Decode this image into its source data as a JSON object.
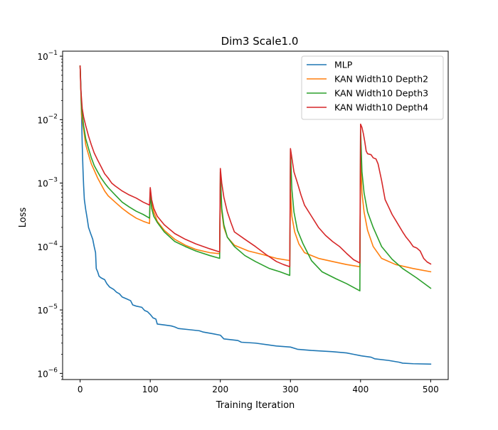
{
  "chart_data": {
    "type": "line",
    "title": "Dim3 Scale1.0",
    "xlabel": "Training Iteration",
    "ylabel": "Loss",
    "xlim": [
      -25,
      525
    ],
    "ylim": [
      8e-07,
      0.12
    ],
    "yscale": "log",
    "xticks": [
      0,
      100,
      200,
      300,
      400,
      500
    ],
    "yticks": [
      {
        "value": 1e-06,
        "base": "10",
        "exp": "−6"
      },
      {
        "value": 1e-05,
        "base": "10",
        "exp": "−5"
      },
      {
        "value": 0.0001,
        "base": "10",
        "exp": "−4"
      },
      {
        "value": 0.001,
        "base": "10",
        "exp": "−3"
      },
      {
        "value": 0.01,
        "base": "10",
        "exp": "−2"
      },
      {
        "value": 0.1,
        "base": "10",
        "exp": "−1"
      }
    ],
    "legend_position": "top-right",
    "series": [
      {
        "name": "MLP",
        "color": "#1f77b4",
        "points": [
          [
            0,
            0.07
          ],
          [
            1,
            0.035
          ],
          [
            2,
            0.012
          ],
          [
            3,
            0.004
          ],
          [
            4,
            0.0017
          ],
          [
            5,
            0.0009
          ],
          [
            6,
            0.00055
          ],
          [
            8,
            0.00038
          ],
          [
            10,
            0.00028
          ],
          [
            12,
            0.0002
          ],
          [
            15,
            0.00016
          ],
          [
            18,
            0.00013
          ],
          [
            20,
            0.0001
          ],
          [
            22,
            8e-05
          ],
          [
            23,
            4.5e-05
          ],
          [
            25,
            4e-05
          ],
          [
            27,
            3.4e-05
          ],
          [
            30,
            3.2e-05
          ],
          [
            35,
            3e-05
          ],
          [
            38,
            2.6e-05
          ],
          [
            42,
            2.3e-05
          ],
          [
            48,
            2.1e-05
          ],
          [
            52,
            1.9e-05
          ],
          [
            56,
            1.8e-05
          ],
          [
            60,
            1.6e-05
          ],
          [
            66,
            1.5e-05
          ],
          [
            72,
            1.4e-05
          ],
          [
            75,
            1.2e-05
          ],
          [
            80,
            1.15e-05
          ],
          [
            88,
            1.1e-05
          ],
          [
            92,
            9.8e-06
          ],
          [
            96,
            9.4e-06
          ],
          [
            100,
            8.5e-06
          ],
          [
            104,
            7.5e-06
          ],
          [
            108,
            7.2e-06
          ],
          [
            110,
            6e-06
          ],
          [
            120,
            5.8e-06
          ],
          [
            130,
            5.6e-06
          ],
          [
            135,
            5.4e-06
          ],
          [
            140,
            5.1e-06
          ],
          [
            155,
            4.9e-06
          ],
          [
            170,
            4.7e-06
          ],
          [
            175,
            4.5e-06
          ],
          [
            190,
            4.2e-06
          ],
          [
            200,
            4e-06
          ],
          [
            205,
            3.5e-06
          ],
          [
            225,
            3.3e-06
          ],
          [
            230,
            3.1e-06
          ],
          [
            250,
            3e-06
          ],
          [
            270,
            2.8e-06
          ],
          [
            280,
            2.7e-06
          ],
          [
            300,
            2.6e-06
          ],
          [
            310,
            2.4e-06
          ],
          [
            330,
            2.3e-06
          ],
          [
            360,
            2.2e-06
          ],
          [
            380,
            2.1e-06
          ],
          [
            390,
            2e-06
          ],
          [
            400,
            1.9e-06
          ],
          [
            415,
            1.8e-06
          ],
          [
            420,
            1.7e-06
          ],
          [
            440,
            1.6e-06
          ],
          [
            455,
            1.5e-06
          ],
          [
            460,
            1.45e-06
          ],
          [
            475,
            1.42e-06
          ],
          [
            500,
            1.4e-06
          ]
        ]
      },
      {
        "name": "KAN Width10 Depth2",
        "color": "#ff7f0e",
        "points": [
          [
            0,
            0.07
          ],
          [
            2,
            0.012
          ],
          [
            5,
            0.007
          ],
          [
            8,
            0.004
          ],
          [
            12,
            0.0028
          ],
          [
            16,
            0.002
          ],
          [
            20,
            0.0016
          ],
          [
            25,
            0.0012
          ],
          [
            30,
            0.00095
          ],
          [
            35,
            0.00075
          ],
          [
            40,
            0.00063
          ],
          [
            50,
            0.0005
          ],
          [
            60,
            0.0004
          ],
          [
            70,
            0.00033
          ],
          [
            80,
            0.00028
          ],
          [
            90,
            0.00025
          ],
          [
            99,
            0.00023
          ],
          [
            100,
            0.0008
          ],
          [
            102,
            0.0005
          ],
          [
            105,
            0.00035
          ],
          [
            110,
            0.00025
          ],
          [
            120,
            0.00018
          ],
          [
            135,
            0.00013
          ],
          [
            150,
            0.000105
          ],
          [
            165,
            9e-05
          ],
          [
            185,
            8e-05
          ],
          [
            199,
            7.7e-05
          ],
          [
            200,
            0.001
          ],
          [
            202,
            0.00035
          ],
          [
            205,
            0.0002
          ],
          [
            210,
            0.00014
          ],
          [
            220,
            0.000105
          ],
          [
            240,
            8.5e-05
          ],
          [
            260,
            7.5e-05
          ],
          [
            280,
            6.5e-05
          ],
          [
            299,
            6e-05
          ],
          [
            300,
            0.0008
          ],
          [
            302,
            0.0003
          ],
          [
            306,
            0.00017
          ],
          [
            312,
            0.00011
          ],
          [
            320,
            8e-05
          ],
          [
            340,
            6.5e-05
          ],
          [
            360,
            5.8e-05
          ],
          [
            380,
            5.2e-05
          ],
          [
            399,
            4.8e-05
          ],
          [
            400,
            0.0028
          ],
          [
            402,
            0.0007
          ],
          [
            405,
            0.00035
          ],
          [
            410,
            0.00018
          ],
          [
            418,
            0.0001
          ],
          [
            430,
            6.5e-05
          ],
          [
            450,
            5.2e-05
          ],
          [
            475,
            4.5e-05
          ],
          [
            500,
            4e-05
          ]
        ]
      },
      {
        "name": "KAN Width10 Depth3",
        "color": "#2ca02c",
        "points": [
          [
            0,
            0.07
          ],
          [
            2,
            0.015
          ],
          [
            5,
            0.008
          ],
          [
            8,
            0.005
          ],
          [
            12,
            0.0035
          ],
          [
            16,
            0.0025
          ],
          [
            20,
            0.0019
          ],
          [
            25,
            0.0015
          ],
          [
            30,
            0.0012
          ],
          [
            35,
            0.001
          ],
          [
            40,
            0.00085
          ],
          [
            50,
            0.00065
          ],
          [
            60,
            0.0005
          ],
          [
            70,
            0.00042
          ],
          [
            80,
            0.00036
          ],
          [
            90,
            0.00032
          ],
          [
            99,
            0.00028
          ],
          [
            100,
            0.0007
          ],
          [
            102,
            0.0004
          ],
          [
            105,
            0.0003
          ],
          [
            110,
            0.00024
          ],
          [
            120,
            0.00017
          ],
          [
            135,
            0.00012
          ],
          [
            150,
            0.0001
          ],
          [
            165,
            8.5e-05
          ],
          [
            185,
            7.2e-05
          ],
          [
            199,
            6.5e-05
          ],
          [
            200,
            0.0015
          ],
          [
            202,
            0.0004
          ],
          [
            205,
            0.00022
          ],
          [
            210,
            0.00014
          ],
          [
            220,
            0.0001
          ],
          [
            235,
            7.2e-05
          ],
          [
            250,
            5.8e-05
          ],
          [
            270,
            4.5e-05
          ],
          [
            285,
            4e-05
          ],
          [
            299,
            3.5e-05
          ],
          [
            300,
            0.0033
          ],
          [
            302,
            0.0008
          ],
          [
            305,
            0.00035
          ],
          [
            310,
            0.00018
          ],
          [
            318,
            0.00011
          ],
          [
            330,
            6e-05
          ],
          [
            345,
            4e-05
          ],
          [
            365,
            3.1e-05
          ],
          [
            380,
            2.6e-05
          ],
          [
            399,
            2e-05
          ],
          [
            400,
            0.007
          ],
          [
            402,
            0.0015
          ],
          [
            405,
            0.0007
          ],
          [
            410,
            0.00035
          ],
          [
            418,
            0.0002
          ],
          [
            430,
            0.0001
          ],
          [
            445,
            6.3e-05
          ],
          [
            460,
            4.5e-05
          ],
          [
            480,
            3.2e-05
          ],
          [
            500,
            2.2e-05
          ]
        ]
      },
      {
        "name": "KAN Width10 Depth4",
        "color": "#d62728",
        "points": [
          [
            0,
            0.07
          ],
          [
            1,
            0.03
          ],
          [
            3,
            0.015
          ],
          [
            5,
            0.011
          ],
          [
            8,
            0.008
          ],
          [
            12,
            0.0055
          ],
          [
            16,
            0.004
          ],
          [
            20,
            0.003
          ],
          [
            25,
            0.0023
          ],
          [
            30,
            0.0018
          ],
          [
            35,
            0.0014
          ],
          [
            40,
            0.0012
          ],
          [
            45,
            0.001
          ],
          [
            50,
            0.0009
          ],
          [
            60,
            0.00075
          ],
          [
            70,
            0.00065
          ],
          [
            80,
            0.00058
          ],
          [
            90,
            0.0005
          ],
          [
            99,
            0.00045
          ],
          [
            100,
            0.00085
          ],
          [
            102,
            0.00055
          ],
          [
            105,
            0.0004
          ],
          [
            110,
            0.0003
          ],
          [
            120,
            0.00022
          ],
          [
            135,
            0.00016
          ],
          [
            150,
            0.00013
          ],
          [
            165,
            0.00011
          ],
          [
            185,
            9.2e-05
          ],
          [
            199,
            8.2e-05
          ],
          [
            200,
            0.0017
          ],
          [
            202,
            0.001
          ],
          [
            205,
            0.0006
          ],
          [
            210,
            0.00035
          ],
          [
            215,
            0.00024
          ],
          [
            220,
            0.00017
          ],
          [
            235,
            0.00013
          ],
          [
            250,
            0.0001
          ],
          [
            265,
            7.5e-05
          ],
          [
            280,
            5.8e-05
          ],
          [
            290,
            5.2e-05
          ],
          [
            299,
            4.8e-05
          ],
          [
            300,
            0.0035
          ],
          [
            302,
            0.0025
          ],
          [
            305,
            0.0015
          ],
          [
            310,
            0.001
          ],
          [
            315,
            0.00065
          ],
          [
            320,
            0.00045
          ],
          [
            330,
            0.0003
          ],
          [
            340,
            0.0002
          ],
          [
            350,
            0.00015
          ],
          [
            360,
            0.00012
          ],
          [
            370,
            0.0001
          ],
          [
            380,
            7.8e-05
          ],
          [
            390,
            6.2e-05
          ],
          [
            399,
            5.5e-05
          ],
          [
            400,
            0.0085
          ],
          [
            402,
            0.0075
          ],
          [
            404,
            0.006
          ],
          [
            406,
            0.0045
          ],
          [
            408,
            0.0032
          ],
          [
            410,
            0.0029
          ],
          [
            415,
            0.0028
          ],
          [
            418,
            0.0025
          ],
          [
            422,
            0.0024
          ],
          [
            425,
            0.002
          ],
          [
            430,
            0.0011
          ],
          [
            435,
            0.00055
          ],
          [
            440,
            0.00042
          ],
          [
            445,
            0.00032
          ],
          [
            450,
            0.00026
          ],
          [
            455,
            0.00021
          ],
          [
            460,
            0.00017
          ],
          [
            465,
            0.00014
          ],
          [
            470,
            0.00012
          ],
          [
            475,
            0.0001
          ],
          [
            480,
            9.5e-05
          ],
          [
            485,
            8.5e-05
          ],
          [
            490,
            6.5e-05
          ],
          [
            495,
            5.7e-05
          ],
          [
            500,
            5.3e-05
          ]
        ]
      }
    ]
  }
}
